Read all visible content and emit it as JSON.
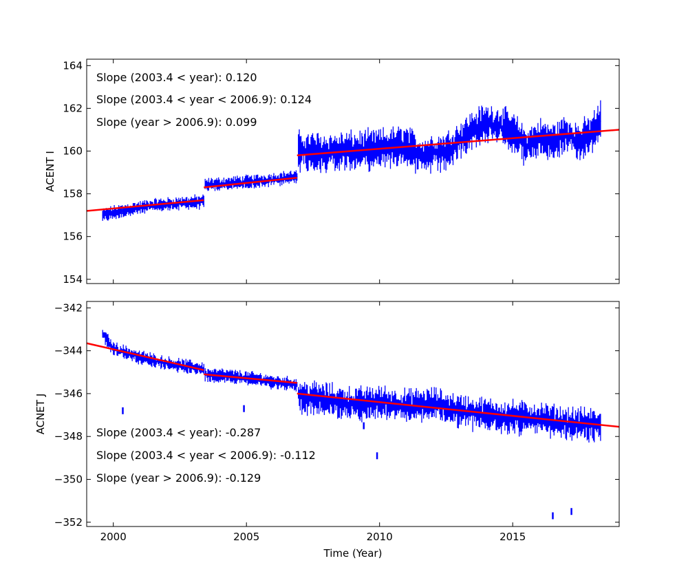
{
  "chart_data": [
    {
      "type": "line",
      "ylabel": "ACENT I",
      "xlabel": "",
      "xlim": [
        1999.0,
        2019.0
      ],
      "ylim": [
        153.8,
        164.3
      ],
      "xticks": [
        2000,
        2005,
        2010,
        2015
      ],
      "yticks": [
        154,
        156,
        158,
        160,
        162,
        164
      ],
      "xtick_labels_shown": false,
      "annotations": [
        "Slope (2003.4 < year):  0.120",
        "Slope (2003.4 <  year < 2006.9): 0.124",
        "Slope (year > 2006.9):  0.099"
      ],
      "series": [
        {
          "name": "data",
          "color": "#0000ff",
          "segments": [
            {
              "x": [
                1999.6,
                2000.5,
                2001.5,
                2002.5,
                2003.4
              ],
              "y": [
                157.0,
                157.25,
                157.45,
                157.55,
                157.65
              ],
              "spread": 0.25
            },
            {
              "x": [
                2003.45,
                2004.5,
                2005.5,
                2006.9
              ],
              "y": [
                158.4,
                158.5,
                158.6,
                158.8
              ],
              "spread": 0.25
            },
            {
              "x": [
                2006.95,
                2008.0,
                2009.0,
                2010.0,
                2011.0,
                2011.5,
                2012.0,
                2012.5,
                2013.0,
                2013.5,
                2014.0,
                2014.5,
                2015.0,
                2015.5,
                2016.0,
                2016.5,
                2017.0,
                2017.5,
                2018.0,
                2018.3
              ],
              "y": [
                160.0,
                159.95,
                160.0,
                160.1,
                160.3,
                159.8,
                159.9,
                160.0,
                160.5,
                161.0,
                161.3,
                161.2,
                160.9,
                160.2,
                160.6,
                160.4,
                160.8,
                160.4,
                160.9,
                161.4
              ],
              "spread": 0.7
            }
          ]
        },
        {
          "name": "fit",
          "color": "#ff0000",
          "segments": [
            {
              "x": [
                1999.0,
                2003.4
              ],
              "y": [
                157.2,
                157.7
              ]
            },
            {
              "x": [
                2003.4,
                2006.9
              ],
              "y": [
                158.3,
                158.75
              ]
            },
            {
              "x": [
                2006.9,
                2019.0
              ],
              "y": [
                159.8,
                161.0
              ]
            }
          ]
        }
      ]
    },
    {
      "type": "line",
      "ylabel": "ACNET J",
      "xlabel": "Time (Year)",
      "xlim": [
        1999.0,
        2019.0
      ],
      "ylim": [
        -352.2,
        -341.7
      ],
      "xticks": [
        2000,
        2005,
        2010,
        2015
      ],
      "yticks": [
        -342,
        -344,
        -346,
        -348,
        -350,
        -352
      ],
      "xtick_labels": [
        "2000",
        "2005",
        "2010",
        "2015"
      ],
      "ytick_labels": [
        "−342",
        "−344",
        "−346",
        "−348",
        "−350",
        "−352"
      ],
      "annotations": [
        "Slope (2003.4 < year):  -0.287",
        "Slope (2003.4 <  year < 2006.9): -0.112",
        "Slope (year > 2006.9):  -0.129"
      ],
      "series": [
        {
          "name": "data",
          "color": "#0000ff",
          "segments": [
            {
              "x": [
                1999.6,
                2000.0,
                2001.0,
                2002.0,
                2003.4
              ],
              "y": [
                -343.2,
                -343.9,
                -344.3,
                -344.6,
                -344.85
              ],
              "spread": 0.25
            },
            {
              "x": [
                2003.45,
                2004.5,
                2005.5,
                2006.9
              ],
              "y": [
                -345.1,
                -345.2,
                -345.35,
                -345.6
              ],
              "spread": 0.25
            },
            {
              "x": [
                2006.95,
                2008.0,
                2009.0,
                2010.0,
                2011.0,
                2012.0,
                2013.0,
                2014.0,
                2015.0,
                2016.0,
                2017.0,
                2018.3
              ],
              "y": [
                -346.1,
                -346.3,
                -346.5,
                -346.4,
                -346.6,
                -346.5,
                -346.8,
                -347.0,
                -347.1,
                -347.2,
                -347.4,
                -347.5
              ],
              "spread": 0.6
            }
          ],
          "outliers": [
            {
              "x": 2000.35,
              "y": -346.8
            },
            {
              "x": 2004.9,
              "y": -346.7
            },
            {
              "x": 2009.4,
              "y": -347.5
            },
            {
              "x": 2009.9,
              "y": -348.9
            },
            {
              "x": 2016.5,
              "y": -351.7
            },
            {
              "x": 2017.2,
              "y": -351.5
            }
          ]
        },
        {
          "name": "fit",
          "color": "#ff0000",
          "segments": [
            {
              "x": [
                1999.0,
                2003.4
              ],
              "y": [
                -343.65,
                -344.9
              ]
            },
            {
              "x": [
                2003.4,
                2006.9
              ],
              "y": [
                -345.1,
                -345.5
              ]
            },
            {
              "x": [
                2006.9,
                2019.0
              ],
              "y": [
                -346.0,
                -347.55
              ]
            }
          ]
        }
      ]
    }
  ]
}
